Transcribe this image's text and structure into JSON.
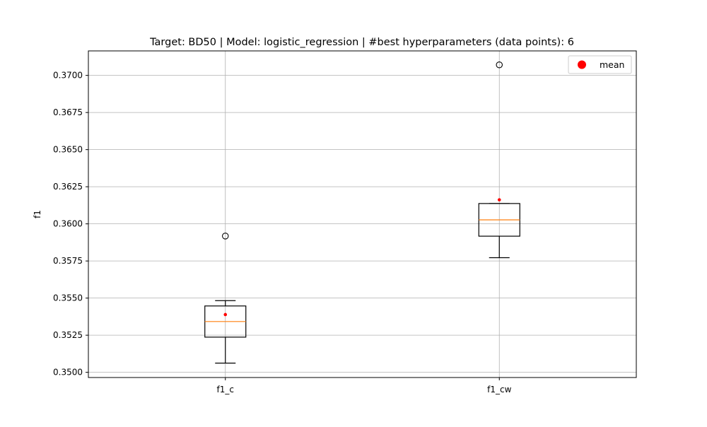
{
  "chart_data": {
    "type": "box",
    "title": "Target: BD50 | Model: logistic_regression | #best hyperparameters (data points): 6",
    "xlabel": "",
    "ylabel": "f1",
    "ylim": [
      0.34965,
      0.37165
    ],
    "grid": true,
    "legend": {
      "placement": "top-right",
      "entries": [
        "mean"
      ]
    },
    "yticks": [
      0.35,
      0.3525,
      0.355,
      0.3575,
      0.36,
      0.3625,
      0.365,
      0.3675,
      0.37
    ],
    "ytick_labels": [
      "0.3500",
      "0.3525",
      "0.3550",
      "0.3575",
      "0.3600",
      "0.3625",
      "0.3650",
      "0.3675",
      "0.3700"
    ],
    "categories": [
      "f1_c",
      "f1_cw"
    ],
    "boxes": [
      {
        "label": "f1_c",
        "whisker_low": 0.35062,
        "q1": 0.35237,
        "median": 0.35342,
        "q3": 0.35447,
        "whisker_high": 0.35483,
        "mean": 0.35389,
        "outliers": [
          0.35918
        ]
      },
      {
        "label": "f1_cw",
        "whisker_low": 0.35772,
        "q1": 0.35917,
        "median": 0.36027,
        "q3": 0.36137,
        "whisker_high": 0.36137,
        "mean": 0.36162,
        "outliers": [
          0.37071
        ]
      }
    ],
    "colors": {
      "box": "#000000",
      "median": "#ff7f0e",
      "mean": "#ff0000",
      "grid": "#b0b0b0",
      "outlier": "#000000"
    }
  }
}
